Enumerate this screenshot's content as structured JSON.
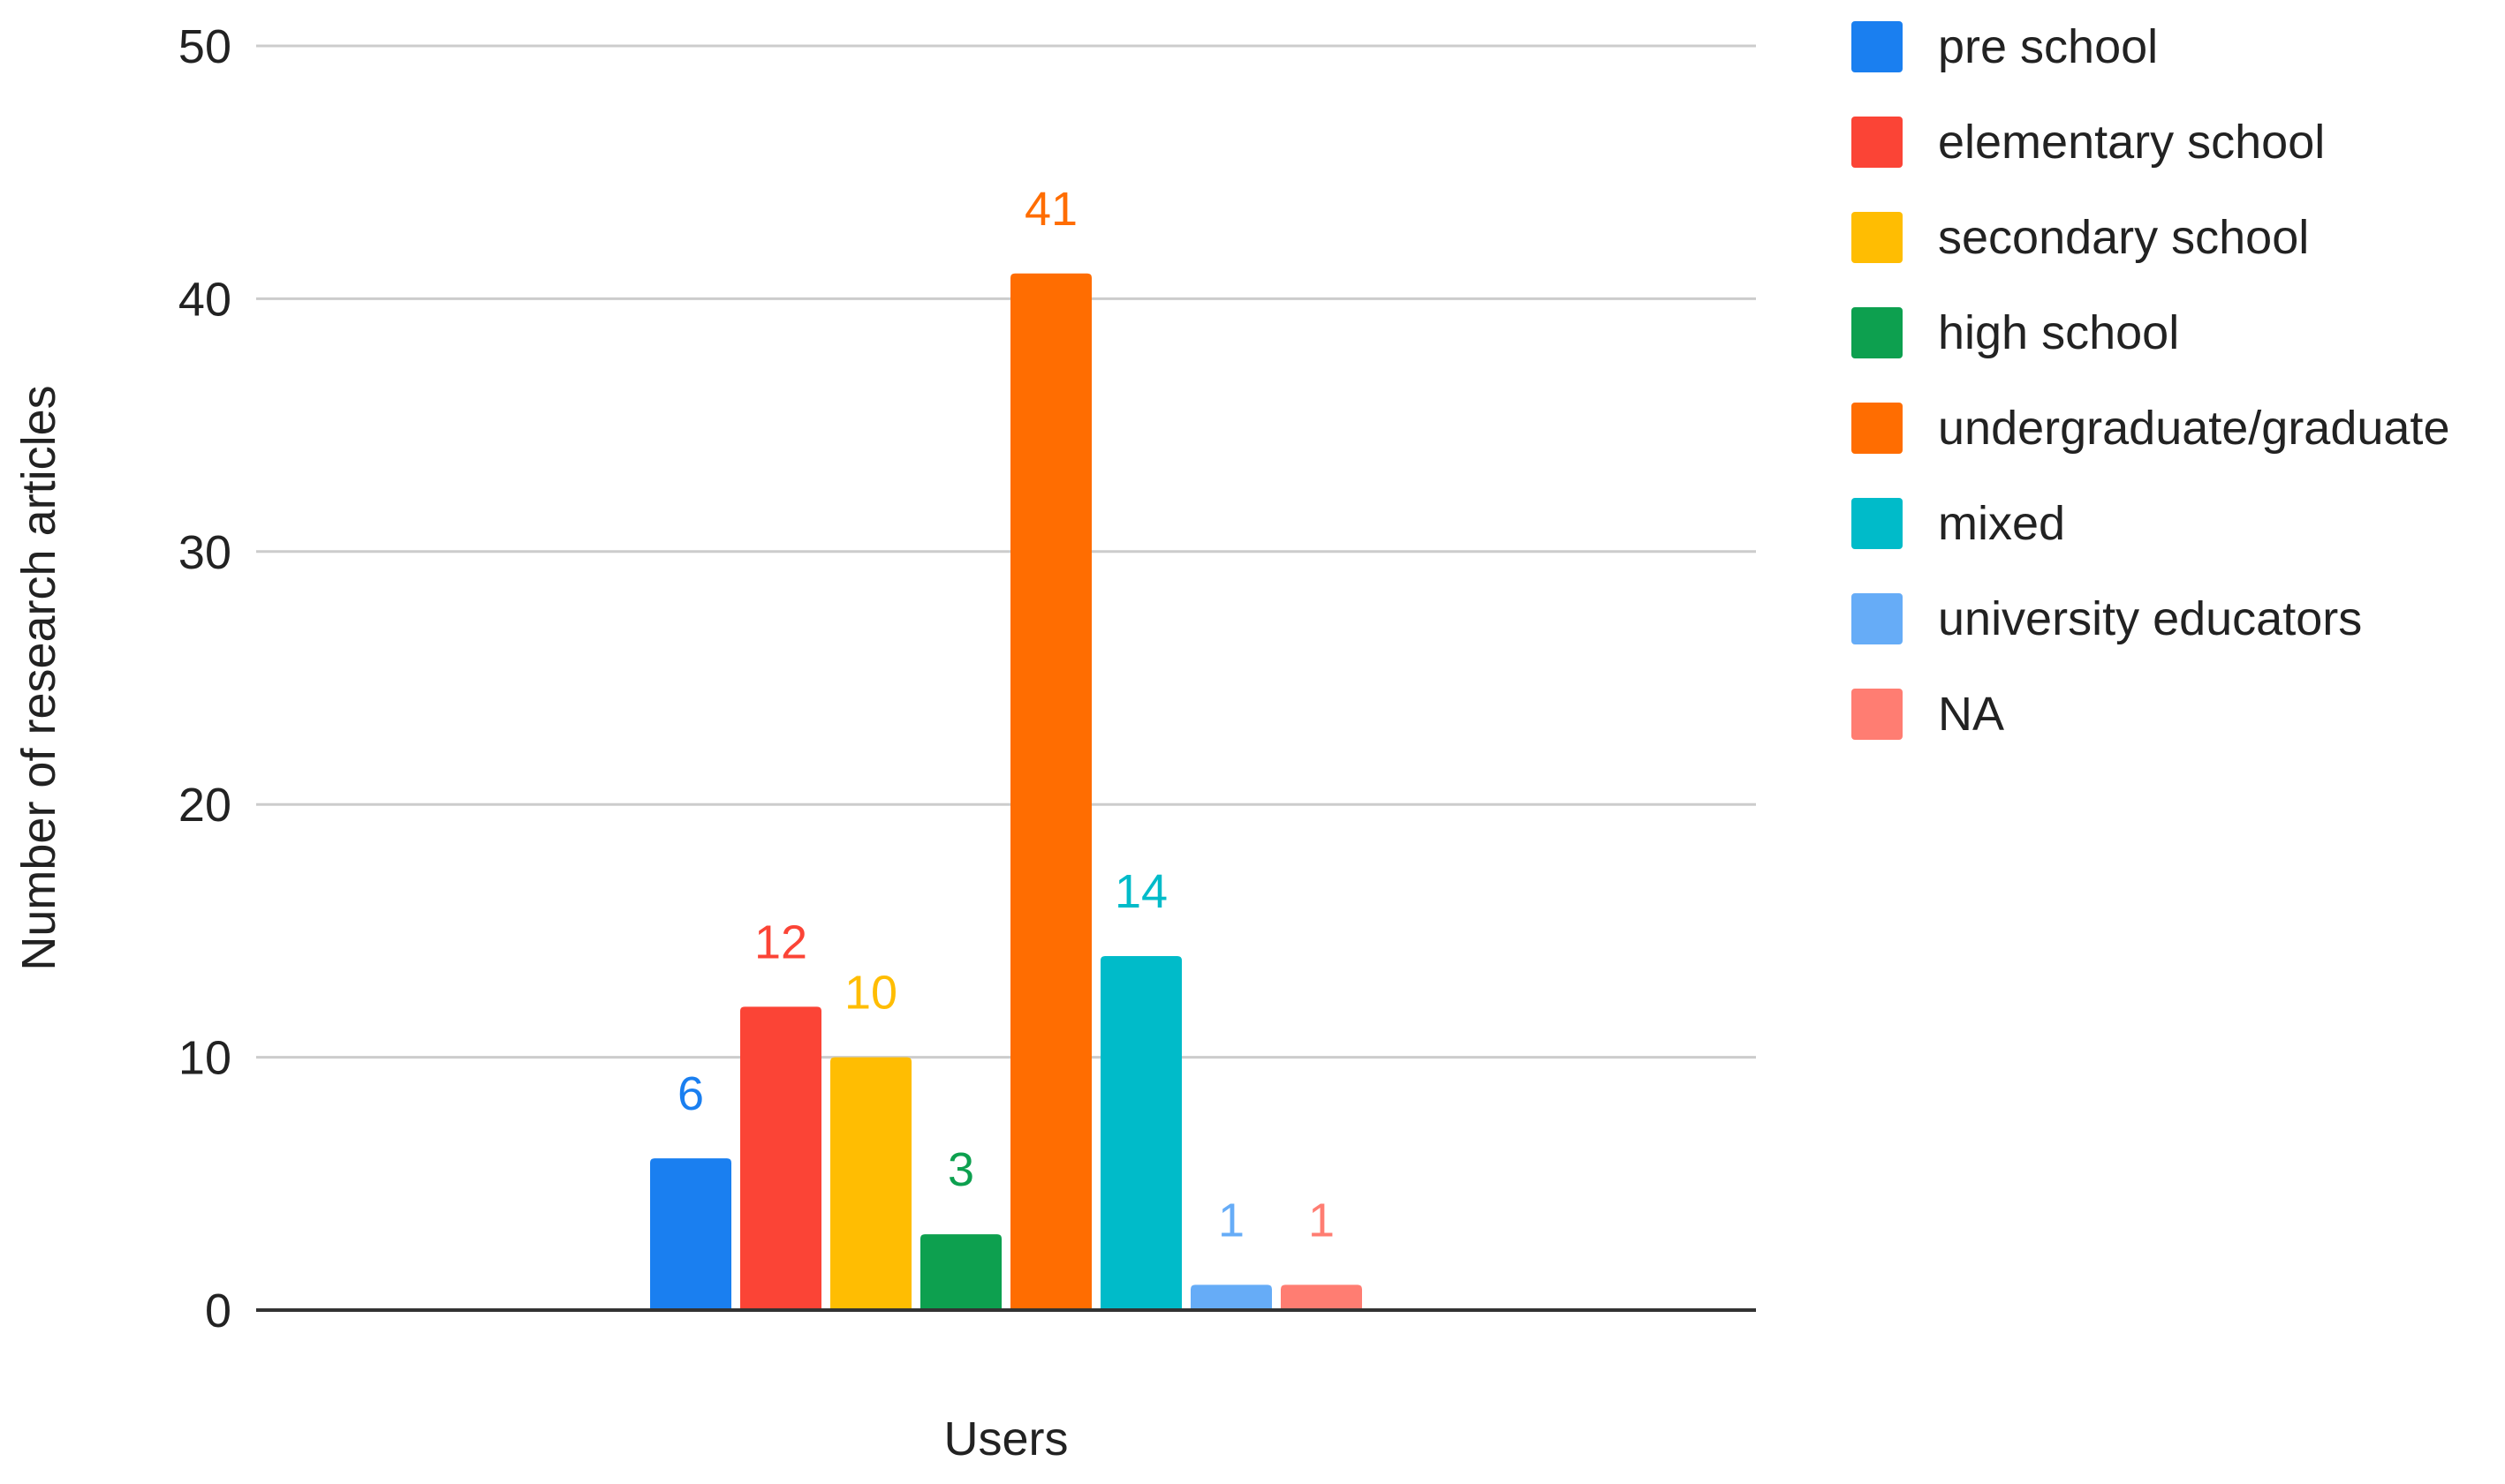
{
  "chart_data": {
    "type": "bar",
    "title": "",
    "xlabel": "Users",
    "ylabel": "Number of research articles",
    "ylim": [
      0,
      50
    ],
    "yticks": [
      0,
      10,
      20,
      30,
      40,
      50
    ],
    "grid": true,
    "legend_position": "right",
    "data_labels": true,
    "categories": [
      "Users"
    ],
    "series": [
      {
        "name": "pre school",
        "values": [
          6
        ],
        "color": "#1a7ff0"
      },
      {
        "name": "elementary school",
        "values": [
          12
        ],
        "color": "#fb4436"
      },
      {
        "name": "secondary school",
        "values": [
          10
        ],
        "color": "#ffbd02"
      },
      {
        "name": "high school",
        "values": [
          3
        ],
        "color": "#0da04f"
      },
      {
        "name": "undergraduate/graduate",
        "values": [
          41
        ],
        "color": "#ff6d01"
      },
      {
        "name": "mixed",
        "values": [
          14
        ],
        "color": "#00bbc9"
      },
      {
        "name": "university educators",
        "values": [
          1
        ],
        "color": "#66acf7"
      },
      {
        "name": "NA",
        "values": [
          1
        ],
        "color": "#ff7d72"
      }
    ]
  }
}
